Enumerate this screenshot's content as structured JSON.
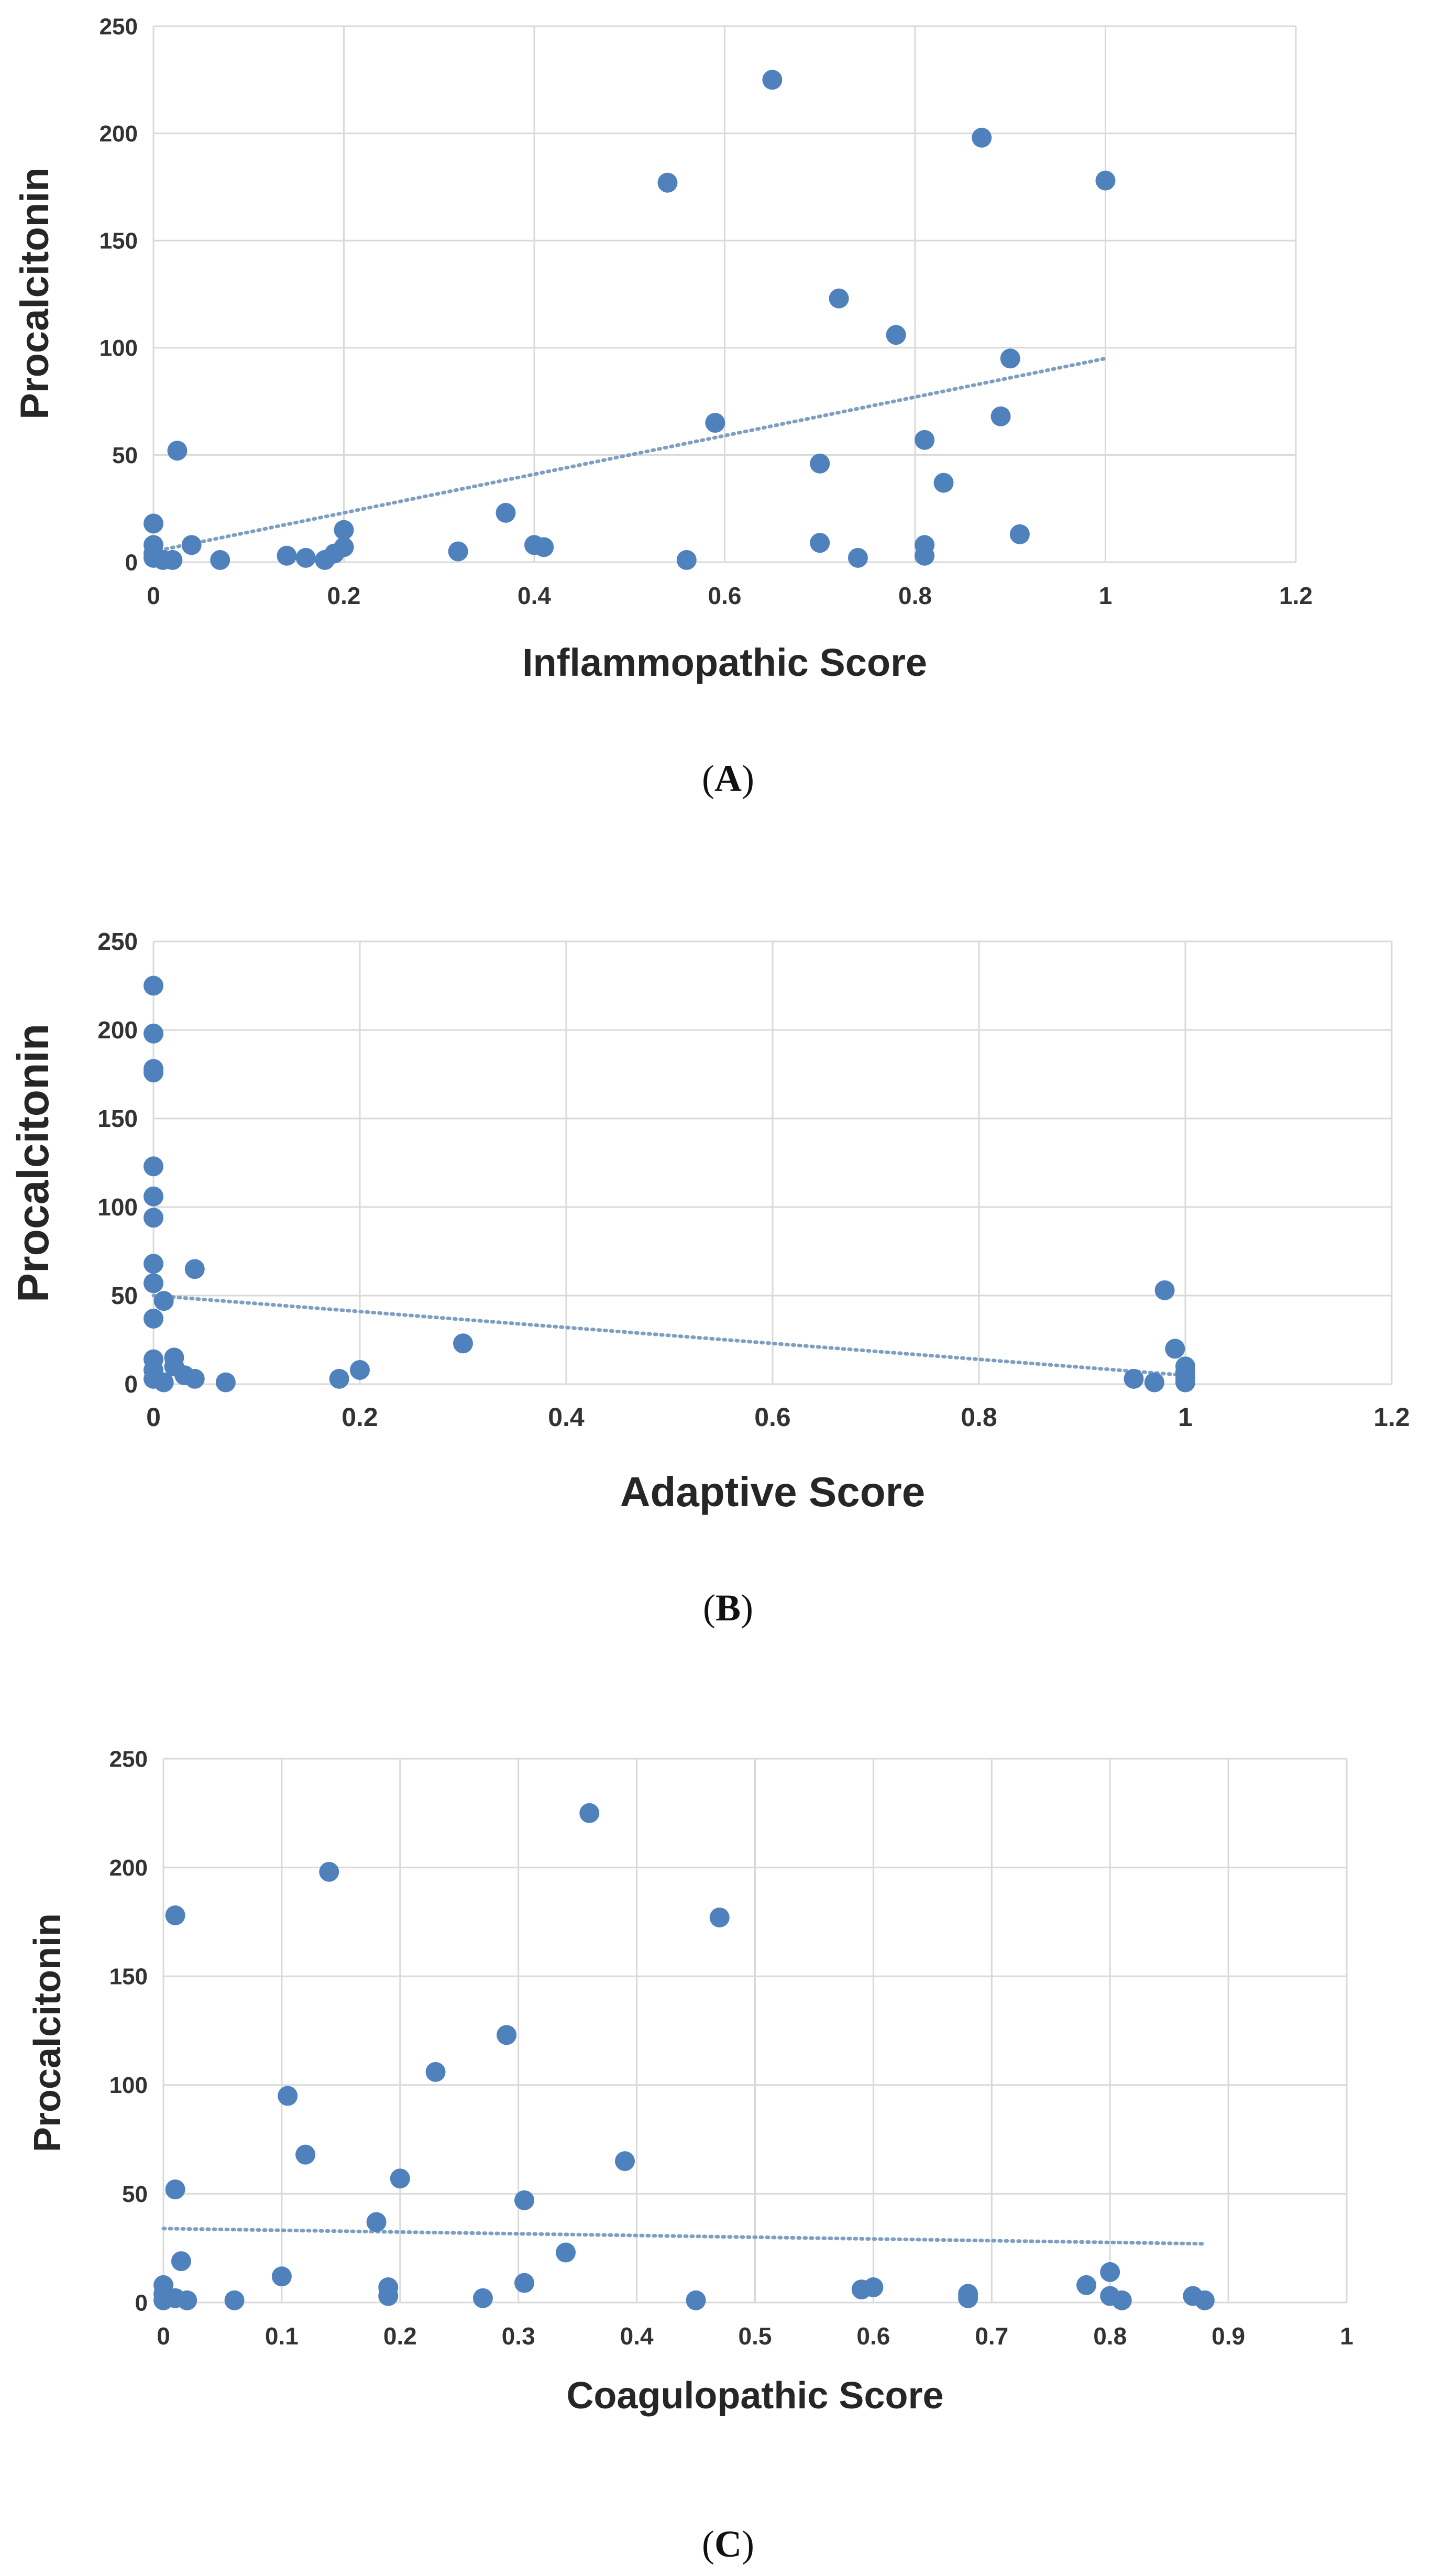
{
  "chart_data": [
    {
      "type": "scatter",
      "panel": "A",
      "panel_label": [
        "(",
        "A",
        ")"
      ],
      "title": "",
      "xlabel": "Inflammopathic Score",
      "ylabel": "Procalcitonin",
      "xlim": [
        0,
        1.2
      ],
      "ylim": [
        0,
        250
      ],
      "xticks": [
        "0",
        "0.2",
        "0.4",
        "0.6",
        "0.8",
        "1",
        "1.2"
      ],
      "yticks": [
        "0",
        "50",
        "100",
        "150",
        "200",
        "250"
      ],
      "grid": true,
      "color": "#4f81bd",
      "trendline": {
        "x": [
          0,
          1.0
        ],
        "y": [
          5,
          95
        ],
        "style": "dotted"
      },
      "points": [
        [
          0.0,
          18
        ],
        [
          0.0,
          8
        ],
        [
          0.0,
          4
        ],
        [
          0.0,
          2
        ],
        [
          0.01,
          1
        ],
        [
          0.02,
          1
        ],
        [
          0.025,
          52
        ],
        [
          0.04,
          8
        ],
        [
          0.07,
          1
        ],
        [
          0.14,
          3
        ],
        [
          0.16,
          2
        ],
        [
          0.18,
          1
        ],
        [
          0.19,
          4
        ],
        [
          0.2,
          15
        ],
        [
          0.2,
          7
        ],
        [
          0.32,
          5
        ],
        [
          0.37,
          23
        ],
        [
          0.4,
          8
        ],
        [
          0.41,
          7
        ],
        [
          0.54,
          177
        ],
        [
          0.56,
          1
        ],
        [
          0.59,
          65
        ],
        [
          0.65,
          225
        ],
        [
          0.7,
          46
        ],
        [
          0.7,
          9
        ],
        [
          0.72,
          123
        ],
        [
          0.74,
          2
        ],
        [
          0.78,
          106
        ],
        [
          0.81,
          57
        ],
        [
          0.81,
          3
        ],
        [
          0.81,
          8
        ],
        [
          0.83,
          37
        ],
        [
          0.87,
          198
        ],
        [
          0.89,
          68
        ],
        [
          0.9,
          95
        ],
        [
          0.91,
          13
        ],
        [
          1.0,
          178
        ]
      ]
    },
    {
      "type": "scatter",
      "panel": "B",
      "panel_label": [
        "(",
        "B",
        ")"
      ],
      "title": "",
      "xlabel": "Adaptive Score",
      "ylabel": "Procalcitonin",
      "xlim": [
        0,
        1.2
      ],
      "ylim": [
        0,
        250
      ],
      "xticks": [
        "0",
        "0.2",
        "0.4",
        "0.6",
        "0.8",
        "1",
        "1.2"
      ],
      "yticks": [
        "0",
        "50",
        "100",
        "150",
        "200",
        "250"
      ],
      "grid": true,
      "color": "#4f81bd",
      "trendline": {
        "x": [
          0,
          1.0
        ],
        "y": [
          50,
          5
        ],
        "style": "dotted"
      },
      "points": [
        [
          0.0,
          225
        ],
        [
          0.0,
          198
        ],
        [
          0.0,
          178
        ],
        [
          0.0,
          176
        ],
        [
          0.0,
          123
        ],
        [
          0.0,
          106
        ],
        [
          0.0,
          94
        ],
        [
          0.0,
          68
        ],
        [
          0.0,
          57
        ],
        [
          0.01,
          47
        ],
        [
          0.0,
          37
        ],
        [
          0.0,
          14
        ],
        [
          0.0,
          8
        ],
        [
          0.0,
          3
        ],
        [
          0.01,
          1
        ],
        [
          0.02,
          15
        ],
        [
          0.02,
          10
        ],
        [
          0.03,
          5
        ],
        [
          0.04,
          3
        ],
        [
          0.04,
          65
        ],
        [
          0.07,
          1
        ],
        [
          0.18,
          3
        ],
        [
          0.2,
          8
        ],
        [
          0.3,
          23
        ],
        [
          0.95,
          3
        ],
        [
          0.97,
          1
        ],
        [
          0.98,
          53
        ],
        [
          0.99,
          20
        ],
        [
          1.0,
          10
        ],
        [
          1.0,
          7
        ],
        [
          1.0,
          5
        ],
        [
          1.0,
          3
        ],
        [
          1.0,
          1
        ]
      ]
    },
    {
      "type": "scatter",
      "panel": "C",
      "panel_label": [
        "(",
        "C",
        ")"
      ],
      "title": "",
      "xlabel": "Coagulopathic Score",
      "ylabel": "Procalcitonin",
      "xlim": [
        0,
        1
      ],
      "ylim": [
        0,
        250
      ],
      "xticks": [
        "0",
        "0.1",
        "0.2",
        "0.3",
        "0.4",
        "0.5",
        "0.6",
        "0.7",
        "0.8",
        "0.9",
        "1"
      ],
      "yticks": [
        "0",
        "50",
        "100",
        "150",
        "200",
        "250"
      ],
      "grid": true,
      "color": "#4f81bd",
      "trendline": {
        "x": [
          0,
          0.88
        ],
        "y": [
          34,
          27
        ],
        "style": "dotted"
      },
      "points": [
        [
          0.0,
          8
        ],
        [
          0.0,
          4
        ],
        [
          0.0,
          1
        ],
        [
          0.01,
          52
        ],
        [
          0.01,
          178
        ],
        [
          0.01,
          2
        ],
        [
          0.015,
          19
        ],
        [
          0.02,
          1
        ],
        [
          0.06,
          1
        ],
        [
          0.1,
          12
        ],
        [
          0.105,
          95
        ],
        [
          0.12,
          68
        ],
        [
          0.14,
          198
        ],
        [
          0.18,
          37
        ],
        [
          0.19,
          3
        ],
        [
          0.19,
          7
        ],
        [
          0.2,
          57
        ],
        [
          0.23,
          106
        ],
        [
          0.27,
          2
        ],
        [
          0.29,
          123
        ],
        [
          0.305,
          47
        ],
        [
          0.305,
          9
        ],
        [
          0.34,
          23
        ],
        [
          0.36,
          225
        ],
        [
          0.39,
          65
        ],
        [
          0.45,
          1
        ],
        [
          0.47,
          177
        ],
        [
          0.59,
          6
        ],
        [
          0.6,
          7
        ],
        [
          0.68,
          4
        ],
        [
          0.68,
          2
        ],
        [
          0.78,
          8
        ],
        [
          0.8,
          3
        ],
        [
          0.8,
          14
        ],
        [
          0.81,
          1
        ],
        [
          0.87,
          3
        ],
        [
          0.88,
          1
        ]
      ]
    }
  ]
}
